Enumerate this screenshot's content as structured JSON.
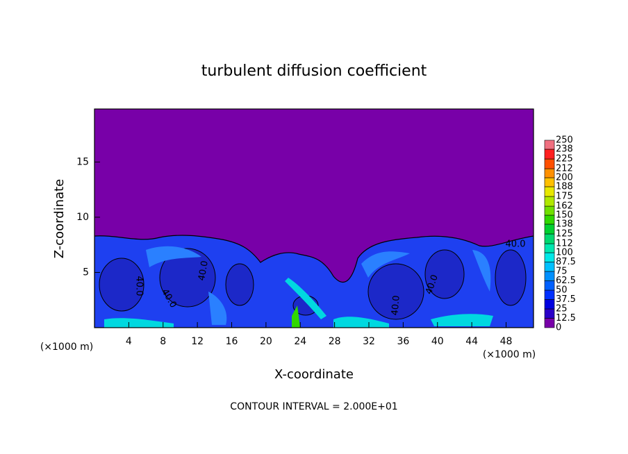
{
  "chart_data": {
    "type": "heatmap",
    "title": "turbulent diffusion coefficient",
    "x_label": "X-coordinate",
    "y_label": "Z-coordinate",
    "x_unit": "(×1000 m)",
    "xlim": [
      0,
      51.2
    ],
    "xticks": [
      4,
      8,
      12,
      16,
      20,
      24,
      28,
      32,
      36,
      40,
      44,
      48
    ],
    "ylim": [
      0,
      19.8
    ],
    "yticks": [
      5,
      10,
      15
    ],
    "colorbar": {
      "ticks": [
        0,
        12.5,
        25,
        37.5,
        50,
        62.5,
        75,
        87.5,
        100,
        112,
        125,
        138,
        150,
        162,
        175,
        188,
        200,
        212,
        225,
        238,
        250
      ],
      "colors": [
        "#7800a8",
        "#2a00c8",
        "#0000e0",
        "#0030ff",
        "#0060ff",
        "#0090ff",
        "#00c0ff",
        "#00e8e8",
        "#00e8b0",
        "#00d870",
        "#00d030",
        "#30d800",
        "#70e000",
        "#b0e800",
        "#e8e800",
        "#ffc000",
        "#ff9000",
        "#ff5000",
        "#ff2020",
        "#f07080"
      ]
    },
    "contour_labels": [
      "40.0",
      "40.0",
      "40.0",
      "40.0",
      "40.0",
      "40.0"
    ],
    "annotation": "CONTOUR INTERVAL = 2.000E+01"
  }
}
